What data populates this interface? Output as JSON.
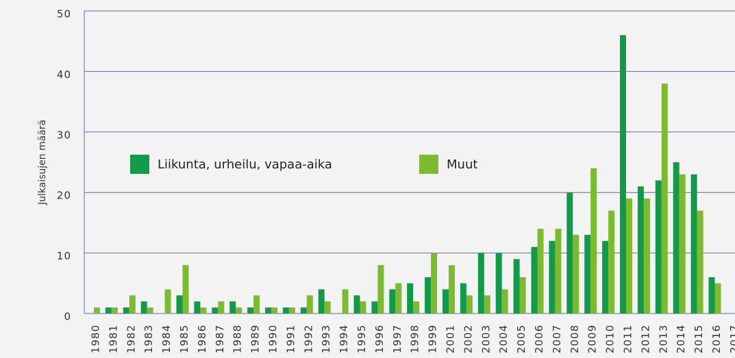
{
  "chart_data": {
    "type": "bar",
    "y_label": "Julkaisujen määrä",
    "categories": [
      "1980",
      "1981",
      "1982",
      "1983",
      "1984",
      "1985",
      "1986",
      "1987",
      "1988",
      "1989",
      "1990",
      "1991",
      "1992",
      "1993",
      "1994",
      "1995",
      "1996",
      "1997",
      "1998",
      "1999",
      "2001",
      "2002",
      "2003",
      "2004",
      "2005",
      "2006",
      "2007",
      "2008",
      "2009",
      "2010",
      "2011",
      "2012",
      "2013",
      "2014",
      "2015",
      "2016",
      "2017"
    ],
    "series": [
      {
        "name": "Liikunta, urheilu, vapaa-aika",
        "color": "#12994a",
        "values": [
          0,
          1,
          1,
          2,
          0,
          3,
          2,
          1,
          2,
          1,
          1,
          1,
          1,
          4,
          0,
          3,
          2,
          4,
          5,
          6,
          4,
          5,
          10,
          10,
          9,
          11,
          12,
          20,
          13,
          12,
          46,
          21,
          22,
          25,
          23,
          6,
          null
        ]
      },
      {
        "name": "Muut",
        "color": "#7cbb2f",
        "values": [
          1,
          1,
          3,
          1,
          4,
          8,
          1,
          2,
          1,
          3,
          1,
          1,
          3,
          2,
          4,
          2,
          8,
          5,
          2,
          10,
          8,
          3,
          3,
          4,
          6,
          14,
          14,
          13,
          24,
          17,
          19,
          19,
          38,
          23,
          17,
          5,
          null
        ]
      }
    ],
    "ylim": [
      0,
      50
    ],
    "yticks": [
      0,
      10,
      20,
      30,
      40,
      50
    ],
    "grid": true,
    "legend": "inside"
  }
}
